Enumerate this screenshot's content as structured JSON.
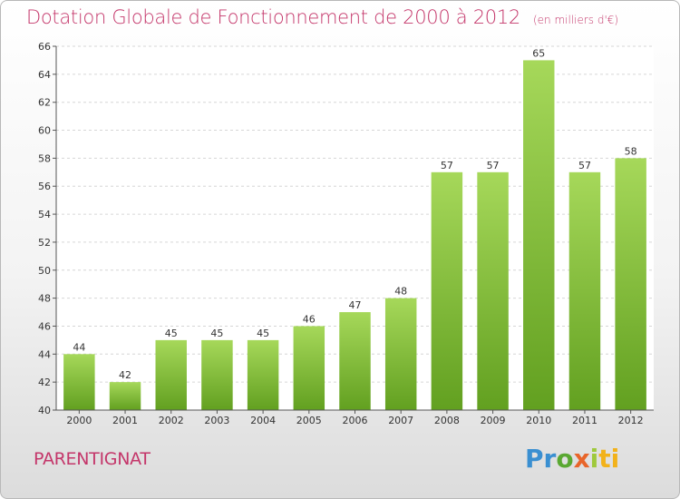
{
  "header": {
    "title": "Dotation Globale de Fonctionnement de 2000 à 2012",
    "unit": "(en milliers d'€)"
  },
  "footer": {
    "commune": "PARENTIGNAT",
    "logo_text": "Proxiti"
  },
  "colors": {
    "bar_light": "#a6d85a",
    "bar_dark": "#62a020",
    "title": "#c4366a"
  },
  "chart_data": {
    "type": "bar",
    "title": "Dotation Globale de Fonctionnement de 2000 à 2012",
    "subtitle": "(en milliers d'€)",
    "xlabel": "",
    "ylabel": "",
    "categories": [
      "2000",
      "2001",
      "2002",
      "2003",
      "2004",
      "2005",
      "2006",
      "2007",
      "2008",
      "2009",
      "2010",
      "2011",
      "2012"
    ],
    "values": [
      44,
      42,
      45,
      45,
      45,
      46,
      47,
      48,
      57,
      57,
      65,
      57,
      58
    ],
    "ylim": [
      40,
      66
    ],
    "yticks": [
      40,
      42,
      44,
      46,
      48,
      50,
      52,
      54,
      56,
      58,
      60,
      62,
      64,
      66
    ],
    "grid": true,
    "legend": "none",
    "data_labels": true
  }
}
